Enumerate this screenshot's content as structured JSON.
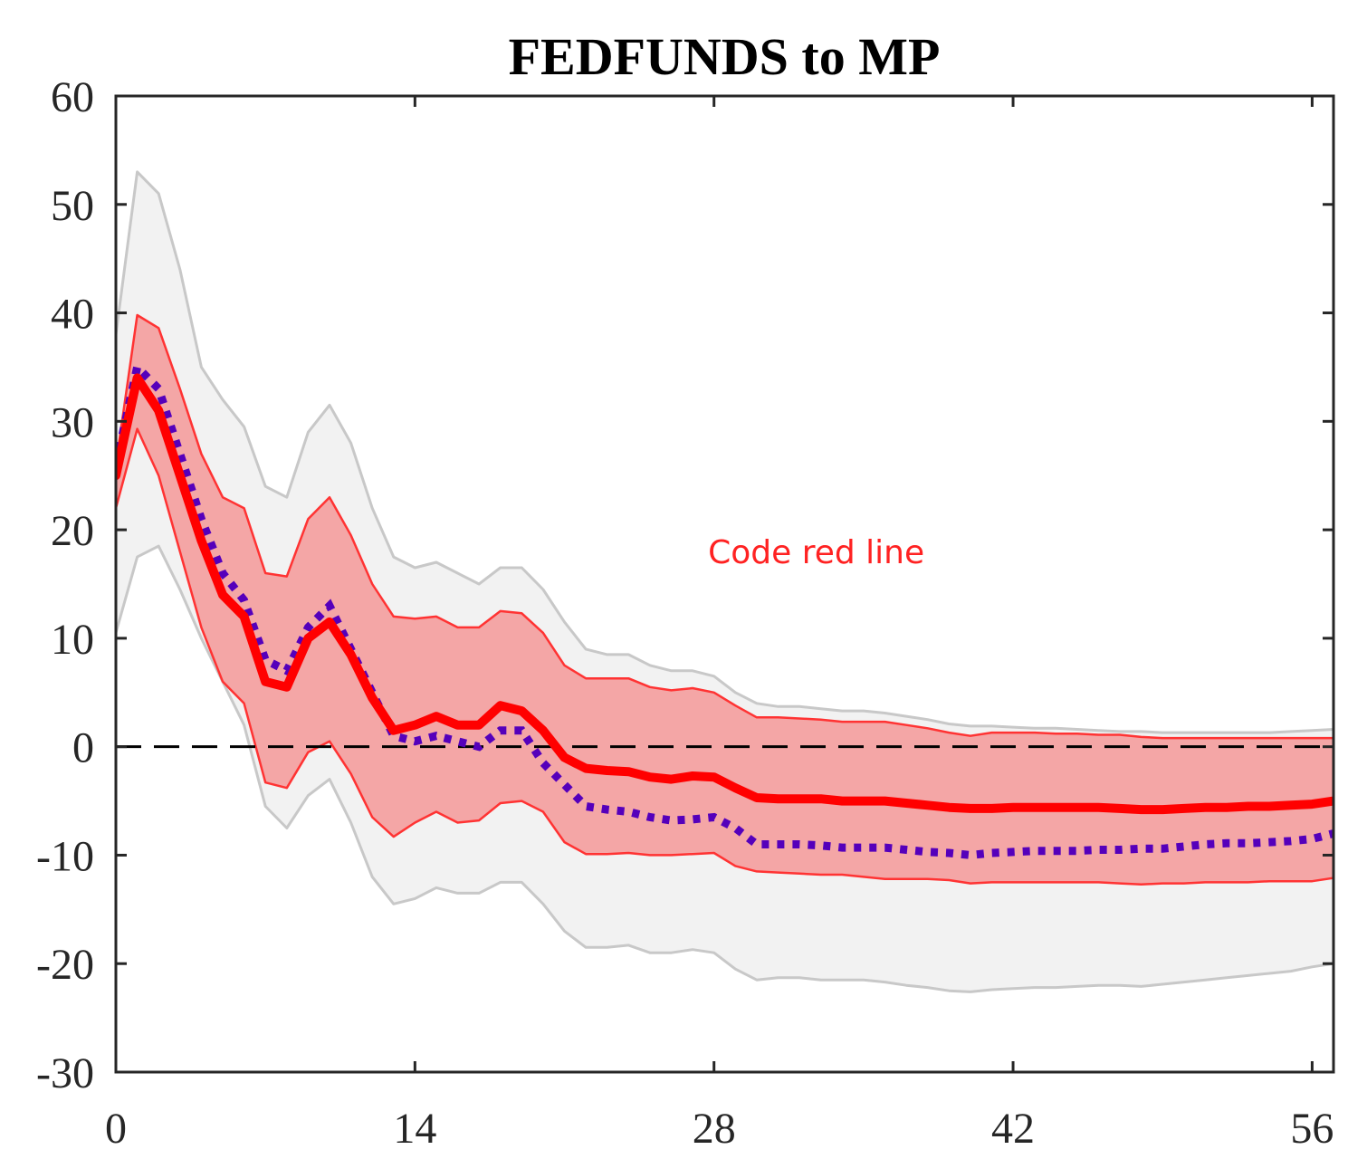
{
  "chart_data": {
    "type": "line",
    "title": "FEDFUNDS to MP",
    "xlabel": "",
    "ylabel": "",
    "xlim": [
      0,
      57
    ],
    "ylim": [
      -30,
      60
    ],
    "xticks": [
      0,
      14,
      28,
      42,
      56
    ],
    "yticks": [
      60,
      50,
      40,
      30,
      20,
      10,
      0,
      -10,
      -20,
      -30
    ],
    "grid": false,
    "x": [
      0,
      1,
      2,
      3,
      4,
      5,
      6,
      7,
      8,
      9,
      10,
      11,
      12,
      13,
      14,
      15,
      16,
      17,
      18,
      19,
      20,
      21,
      22,
      23,
      24,
      25,
      26,
      27,
      28,
      29,
      30,
      31,
      32,
      33,
      34,
      35,
      36,
      37,
      38,
      39,
      40,
      41,
      42,
      43,
      44,
      45,
      46,
      47,
      48,
      49,
      50,
      51,
      52,
      53,
      54,
      55,
      56,
      57
    ],
    "series": [
      {
        "role": "outer-band",
        "style": "shaded",
        "color": "#c8c8c8",
        "fill": "#f2f2f2",
        "upper": [
          38,
          53,
          51,
          44,
          35,
          32,
          29.5,
          24,
          23,
          29,
          31.5,
          28,
          22,
          17.5,
          16.5,
          17,
          16,
          15,
          16.5,
          16.5,
          14.5,
          11.5,
          9,
          8.5,
          8.5,
          7.5,
          7,
          7,
          6.5,
          5,
          4,
          3.7,
          3.7,
          3.5,
          3.3,
          3.3,
          3.1,
          2.8,
          2.5,
          2.1,
          1.9,
          1.9,
          1.8,
          1.7,
          1.7,
          1.6,
          1.5,
          1.4,
          1.4,
          1.3,
          1.3,
          1.3,
          1.3,
          1.3,
          1.3,
          1.4,
          1.5,
          1.6
        ],
        "lower": [
          10.5,
          17.5,
          18.5,
          14.5,
          10,
          6,
          2,
          -5.5,
          -7.5,
          -4.5,
          -3,
          -7,
          -12,
          -14.5,
          -14,
          -13,
          -13.5,
          -13.5,
          -12.5,
          -12.5,
          -14.5,
          -17,
          -18.5,
          -18.5,
          -18.3,
          -19,
          -19,
          -18.7,
          -19,
          -20.5,
          -21.5,
          -21.3,
          -21.3,
          -21.5,
          -21.5,
          -21.5,
          -21.7,
          -22,
          -22.2,
          -22.5,
          -22.6,
          -22.4,
          -22.3,
          -22.2,
          -22.2,
          -22.1,
          -22,
          -22,
          -22.1,
          -21.9,
          -21.7,
          -21.5,
          -21.3,
          -21.1,
          -20.9,
          -20.7,
          -20.3,
          -20
        ]
      },
      {
        "role": "inner-band",
        "style": "shaded",
        "color": "#ff3333",
        "fill": "#f4a6a6",
        "upper": [
          26,
          39.8,
          38.6,
          33,
          27,
          23,
          22,
          16,
          15.7,
          21,
          23,
          19.5,
          15,
          12,
          11.8,
          12,
          11,
          11,
          12.5,
          12.3,
          10.5,
          7.5,
          6.3,
          6.3,
          6.3,
          5.5,
          5.2,
          5.4,
          5,
          3.8,
          2.7,
          2.7,
          2.6,
          2.5,
          2.3,
          2.3,
          2.3,
          2,
          1.7,
          1.3,
          1,
          1.3,
          1.3,
          1.3,
          1.2,
          1.2,
          1.1,
          1.1,
          0.9,
          0.8,
          0.8,
          0.8,
          0.8,
          0.8,
          0.8,
          0.8,
          0.8,
          0.8
        ],
        "lower": [
          22,
          29.3,
          25,
          18,
          11,
          6,
          4,
          -3.3,
          -3.8,
          -0.5,
          0.5,
          -2.5,
          -6.5,
          -8.3,
          -7,
          -6,
          -7,
          -6.8,
          -5.2,
          -5,
          -6,
          -8.8,
          -9.9,
          -9.9,
          -9.8,
          -10,
          -10,
          -9.9,
          -9.8,
          -11,
          -11.5,
          -11.6,
          -11.7,
          -11.8,
          -11.8,
          -12,
          -12.2,
          -12.2,
          -12.2,
          -12.3,
          -12.6,
          -12.5,
          -12.5,
          -12.5,
          -12.5,
          -12.5,
          -12.5,
          -12.6,
          -12.7,
          -12.6,
          -12.6,
          -12.5,
          -12.5,
          -12.5,
          -12.4,
          -12.4,
          -12.4,
          -12.1
        ]
      },
      {
        "role": "median",
        "style": "solid",
        "color": "#ff0000",
        "values": [
          25,
          34,
          31,
          25,
          19,
          14,
          12,
          6,
          5.5,
          10,
          11.5,
          8.5,
          4.5,
          1.5,
          2,
          2.8,
          2,
          2,
          3.8,
          3.3,
          1.5,
          -1,
          -2,
          -2.2,
          -2.3,
          -2.8,
          -3,
          -2.7,
          -2.8,
          -3.8,
          -4.7,
          -4.8,
          -4.8,
          -4.8,
          -5,
          -5,
          -5,
          -5.2,
          -5.4,
          -5.6,
          -5.7,
          -5.7,
          -5.6,
          -5.6,
          -5.6,
          -5.6,
          -5.6,
          -5.7,
          -5.8,
          -5.8,
          -5.7,
          -5.6,
          -5.6,
          -5.5,
          -5.5,
          -5.4,
          -5.3,
          -5
        ]
      },
      {
        "role": "comparison",
        "style": "dotted",
        "color": "#5500bb",
        "values": [
          26,
          35,
          33,
          27,
          21,
          16,
          13.5,
          8,
          7,
          11,
          13,
          9,
          5,
          1,
          0.5,
          1,
          0.5,
          0,
          1.5,
          1.5,
          -1.5,
          -3.5,
          -5.5,
          -5.8,
          -6,
          -6.5,
          -6.8,
          -6.7,
          -6.5,
          -7.5,
          -9,
          -9,
          -9,
          -9.1,
          -9.3,
          -9.3,
          -9.3,
          -9.5,
          -9.7,
          -9.8,
          -10,
          -9.8,
          -9.7,
          -9.6,
          -9.6,
          -9.6,
          -9.5,
          -9.5,
          -9.4,
          -9.4,
          -9.2,
          -9,
          -8.9,
          -8.9,
          -8.8,
          -8.7,
          -8.5,
          -8
        ]
      }
    ],
    "zero_line": {
      "y": 0,
      "style": "dashed",
      "color": "#000000"
    },
    "annotations": [
      {
        "text": "Code red line",
        "x": 27,
        "y": 18,
        "color": "#ff2222"
      }
    ]
  }
}
